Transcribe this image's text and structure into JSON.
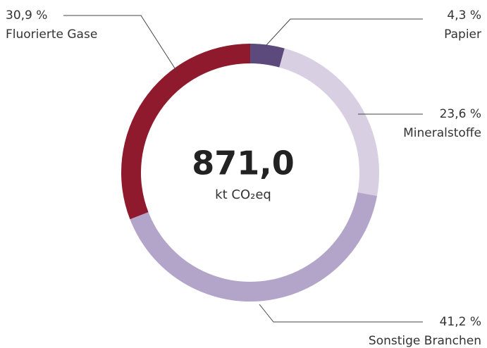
{
  "chart_data": {
    "type": "donut",
    "categories": [
      "Papier",
      "Mineralstoffe",
      "Sonstige Branchen",
      "Fluorierte Gase"
    ],
    "values": [
      4.3,
      23.6,
      41.2,
      30.9
    ],
    "value_labels": [
      "4,3 %",
      "23,6 %",
      "41,2 %",
      "30,9 %"
    ],
    "colors": [
      "#5d4a7c",
      "#d9cfe2",
      "#b3a5c9",
      "#8f1a2d"
    ],
    "total": {
      "value": 871.0,
      "label": "871,0"
    },
    "unit": "kt CO₂eq"
  }
}
